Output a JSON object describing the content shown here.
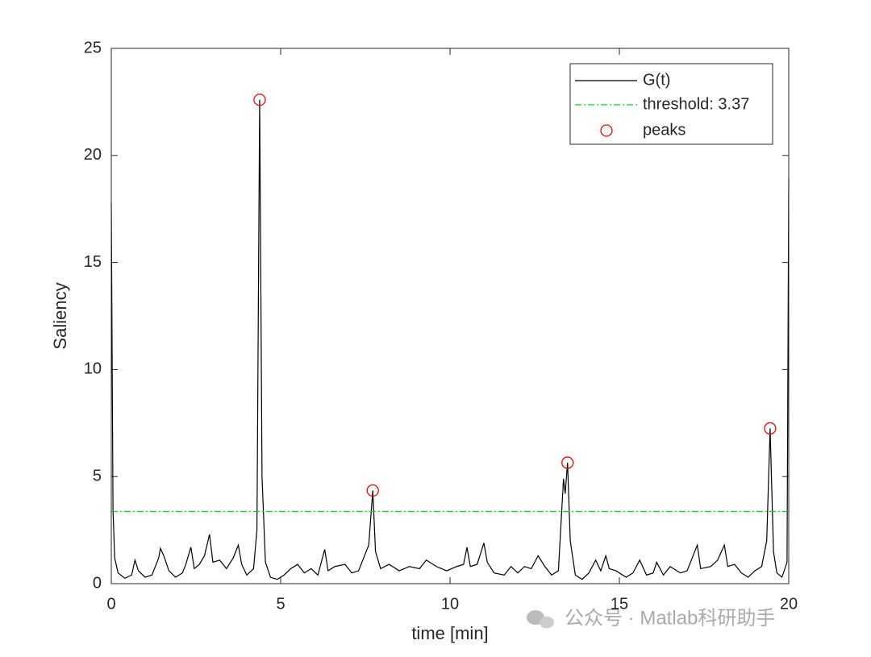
{
  "chart_data": {
    "type": "line",
    "xlabel": "time [min]",
    "ylabel": "Saliency",
    "xlim": [
      0,
      20
    ],
    "ylim": [
      0,
      25
    ],
    "xticks": [
      0,
      5,
      10,
      15,
      20
    ],
    "yticks": [
      0,
      5,
      10,
      15,
      20,
      25
    ],
    "legend": "upper right",
    "x": [
      0,
      0.05,
      0.1,
      0.2,
      0.4,
      0.6,
      0.7,
      0.8,
      1.0,
      1.2,
      1.4,
      1.45,
      1.55,
      1.7,
      1.9,
      2.1,
      2.2,
      2.35,
      2.45,
      2.6,
      2.75,
      2.9,
      3.0,
      3.2,
      3.4,
      3.6,
      3.75,
      3.85,
      4.0,
      4.2,
      4.3,
      4.38,
      4.45,
      4.55,
      4.7,
      4.9,
      5.1,
      5.3,
      5.5,
      5.7,
      5.9,
      6.1,
      6.3,
      6.4,
      6.6,
      6.9,
      7.1,
      7.3,
      7.5,
      7.6,
      7.72,
      7.8,
      7.95,
      8.2,
      8.5,
      8.8,
      9.1,
      9.3,
      9.6,
      9.9,
      10.2,
      10.4,
      10.5,
      10.6,
      10.8,
      11.0,
      11.1,
      11.3,
      11.6,
      11.8,
      12.0,
      12.2,
      12.4,
      12.6,
      12.8,
      13.0,
      13.2,
      13.35,
      13.4,
      13.47,
      13.55,
      13.7,
      13.9,
      14.1,
      14.3,
      14.45,
      14.6,
      14.7,
      14.9,
      15.2,
      15.4,
      15.6,
      15.8,
      16.0,
      16.1,
      16.3,
      16.5,
      16.8,
      17.0,
      17.3,
      17.4,
      17.7,
      17.9,
      18.1,
      18.2,
      18.4,
      18.6,
      18.8,
      19.0,
      19.2,
      19.35,
      19.45,
      19.55,
      19.65,
      19.8,
      19.95,
      20.0
    ],
    "series": [
      {
        "name": "G(t)",
        "color": "#000000",
        "values": [
          17.8,
          3.5,
          1.2,
          0.5,
          0.25,
          0.4,
          1.1,
          0.6,
          0.3,
          0.4,
          1.2,
          1.65,
          1.3,
          0.6,
          0.3,
          0.5,
          0.9,
          1.7,
          0.7,
          0.9,
          1.3,
          2.3,
          1.0,
          1.1,
          0.7,
          1.2,
          1.8,
          0.9,
          0.4,
          0.7,
          2.5,
          22.6,
          5.0,
          1.0,
          0.3,
          0.2,
          0.4,
          0.7,
          0.9,
          0.5,
          0.7,
          0.4,
          1.6,
          0.6,
          0.8,
          0.9,
          0.5,
          0.6,
          1.4,
          1.8,
          4.35,
          1.5,
          0.7,
          0.9,
          0.6,
          0.8,
          0.7,
          1.1,
          0.8,
          0.6,
          0.8,
          0.9,
          1.7,
          0.8,
          0.9,
          1.9,
          1.0,
          0.5,
          0.4,
          0.8,
          0.5,
          0.8,
          0.7,
          1.3,
          0.8,
          0.4,
          0.6,
          4.9,
          4.2,
          5.65,
          2.0,
          0.4,
          0.2,
          0.5,
          1.1,
          0.6,
          1.3,
          0.7,
          0.6,
          0.3,
          0.5,
          1.1,
          0.4,
          0.5,
          1.0,
          0.4,
          0.8,
          0.5,
          0.6,
          1.8,
          0.7,
          0.8,
          1.1,
          1.8,
          0.8,
          0.9,
          0.5,
          0.3,
          0.6,
          0.8,
          2.0,
          7.25,
          1.5,
          0.5,
          0.3,
          1.0,
          18.9
        ]
      }
    ],
    "threshold": {
      "name": "threshold: 3.37",
      "value": 3.37,
      "color": "#00dd00"
    },
    "peaks": {
      "name": "peaks",
      "color": "#ff0000",
      "x": [
        4.38,
        7.72,
        13.47,
        19.45
      ],
      "values": [
        22.6,
        4.35,
        5.65,
        7.25
      ]
    },
    "watermark": "公众号 · Matlab科研助手"
  }
}
